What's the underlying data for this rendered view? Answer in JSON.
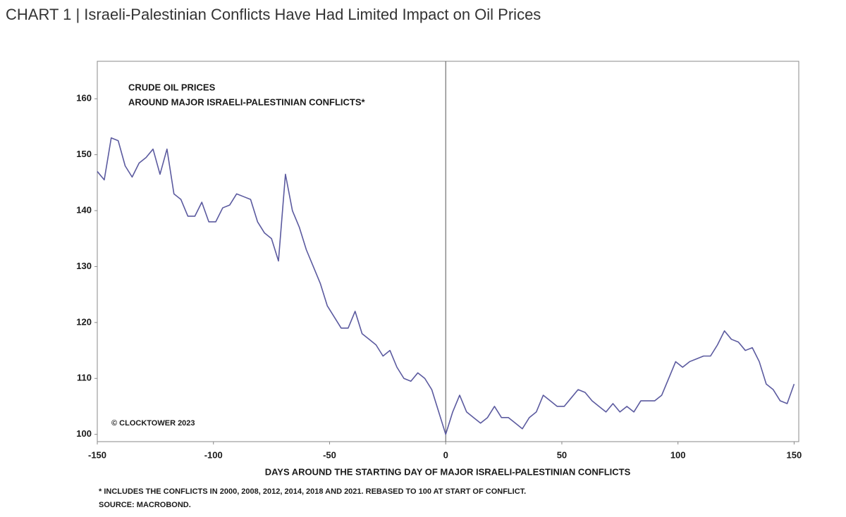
{
  "chart_data": {
    "type": "line",
    "title": "CHART 1 | Israeli-Palestinian Conflicts Have Had Limited Impact on Oil Prices",
    "annotations": [
      "CRUDE OIL PRICES",
      "AROUND MAJOR ISRAELI-PALESTINIAN CONFLICTS*"
    ],
    "copyright": "© CLOCKTOWER 2023",
    "xlabel": "DAYS AROUND THE STARTING DAY OF MAJOR ISRAELI-PALESTINIAN CONFLICTS",
    "footnotes": [
      "* INCLUDES THE CONFLICTS IN 2000, 2008, 2012, 2014, 2018 AND 2021. REBASED TO 100 AT START OF CONFLICT.",
      "SOURCE: MACROBOND."
    ],
    "x": [
      -150,
      -147,
      -144,
      -141,
      -138,
      -135,
      -132,
      -129,
      -126,
      -123,
      -120,
      -117,
      -114,
      -111,
      -108,
      -105,
      -102,
      -99,
      -96,
      -93,
      -90,
      -87,
      -84,
      -81,
      -78,
      -75,
      -72,
      -69,
      -66,
      -63,
      -60,
      -57,
      -54,
      -51,
      -48,
      -45,
      -42,
      -39,
      -36,
      -33,
      -30,
      -27,
      -24,
      -21,
      -18,
      -15,
      -12,
      -9,
      -6,
      -3,
      0,
      3,
      6,
      9,
      12,
      15,
      18,
      21,
      24,
      27,
      30,
      33,
      36,
      39,
      42,
      45,
      48,
      51,
      54,
      57,
      60,
      63,
      66,
      69,
      72,
      75,
      78,
      81,
      84,
      87,
      90,
      93,
      96,
      99,
      102,
      105,
      108,
      111,
      114,
      117,
      120,
      123,
      126,
      129,
      132,
      135,
      138,
      141,
      144,
      147,
      150
    ],
    "values": [
      147,
      145.5,
      153,
      152.5,
      148,
      146,
      148.5,
      149.5,
      151,
      146.5,
      151,
      143,
      142,
      139,
      139,
      141.5,
      138,
      138,
      140.5,
      141,
      143,
      142.5,
      142,
      138,
      136,
      135,
      131,
      146.5,
      140,
      137,
      133,
      130,
      127,
      123,
      121,
      119,
      119,
      122,
      118,
      117,
      116,
      114,
      115,
      112,
      110,
      109.5,
      111,
      110,
      108,
      104,
      100,
      104,
      107,
      104,
      103,
      102,
      103,
      105,
      103,
      103,
      102,
      101,
      103,
      104,
      107,
      106,
      105,
      105,
      106.5,
      108,
      107.5,
      106,
      105,
      104,
      105.5,
      104,
      105,
      104,
      106,
      106,
      106,
      107,
      110,
      113,
      112,
      113,
      113.5,
      114,
      114,
      116,
      118.5,
      117,
      116.5,
      115,
      115.5,
      113,
      109,
      108,
      106,
      105.5,
      109
    ],
    "color": "#5b5a9f",
    "vline": 0,
    "xlim": [
      -150,
      152
    ],
    "xticks": [
      -150,
      -100,
      -50,
      0,
      50,
      100,
      150
    ],
    "ylim": [
      98.7,
      166.7
    ],
    "yticks": [
      100,
      110,
      120,
      130,
      140,
      150,
      160
    ]
  }
}
